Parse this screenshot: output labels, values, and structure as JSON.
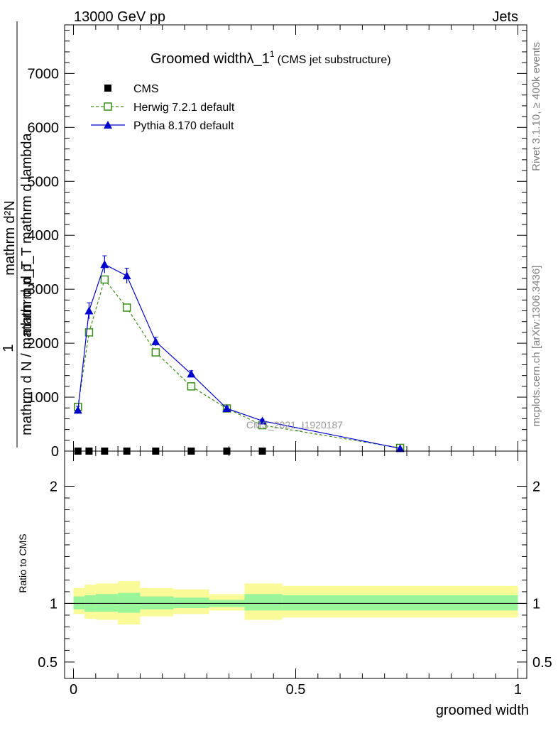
{
  "header": {
    "energy": "13000 GeV pp",
    "process": "Jets"
  },
  "side": {
    "rivet": "Rivet 3.1.10, ≥ 400k events",
    "source": "mcplots.cern.ch [arXiv:1306.3436]"
  },
  "watermark": "CMS_2021_I1920187",
  "main_plot": {
    "title": "Groomed widthλ_1",
    "title_sup": "1",
    "title_note": "(CMS jet substructure)",
    "ylabel_parts": {
      "top_numer": "mathrm d²N",
      "top_denom": "mathrm d p_T mathrm d lambda",
      "prefactor": "1",
      "bottom_denom": "mathrm d N / mathrm d p_T"
    }
  },
  "ratio_plot": {
    "ylabel": "Ratio to CMS",
    "xlabel": "groomed width"
  },
  "legend": {
    "entries": [
      {
        "label": "CMS",
        "marker": "square-filled",
        "color": "#000000"
      },
      {
        "label": "Herwig 7.2.1 default",
        "marker": "square-open",
        "color": "#3d8c19"
      },
      {
        "label": "Pythia 8.170 default",
        "marker": "triangle",
        "color": "#0000cc"
      }
    ]
  },
  "chart_data": [
    {
      "type": "line",
      "xlim": [
        -0.02,
        1.02
      ],
      "ylim": [
        0,
        7900
      ],
      "yticks": [
        0,
        1000,
        2000,
        3000,
        4000,
        5000,
        6000,
        7000
      ],
      "ytick_labels": [
        "0",
        "1000",
        "2000",
        "3000",
        "4000",
        "5000",
        "6000",
        "7000"
      ],
      "grid": false,
      "legend_position": "top-left",
      "series": [
        {
          "name": "CMS",
          "x": [
            0.01,
            0.035,
            0.07,
            0.12,
            0.185,
            0.265,
            0.345,
            0.425
          ],
          "y": [
            0,
            0,
            0,
            0,
            0,
            0,
            0,
            0
          ],
          "color": "#000000"
        },
        {
          "name": "Herwig 7.2.1 default",
          "x": [
            0.01,
            0.035,
            0.07,
            0.12,
            0.185,
            0.265,
            0.345,
            0.425,
            0.735
          ],
          "y": [
            820,
            2200,
            3180,
            2660,
            1830,
            1200,
            790,
            480,
            60
          ],
          "color": "#3d8c19"
        },
        {
          "name": "Pythia 8.170 default",
          "x": [
            0.01,
            0.035,
            0.07,
            0.12,
            0.185,
            0.265,
            0.345,
            0.425,
            0.735
          ],
          "y": [
            760,
            2600,
            3460,
            3250,
            2030,
            1430,
            790,
            560,
            50
          ],
          "yerr": [
            70,
            150,
            160,
            140,
            80,
            60,
            40,
            30,
            10
          ],
          "color": "#0000cc"
        }
      ]
    },
    {
      "type": "area",
      "xlim": [
        -0.02,
        1.02
      ],
      "ylim": [
        0.36,
        2.3
      ],
      "yticks": [
        0.5,
        1,
        2
      ],
      "ytick_labels": [
        "0.5",
        "1",
        "2"
      ],
      "xticks": [
        0,
        0.5,
        1
      ],
      "xtick_labels": [
        "0",
        "0.5",
        "1"
      ],
      "reference": 1,
      "bands": {
        "bin_edges": [
          0,
          0.025,
          0.05,
          0.1,
          0.15,
          0.225,
          0.305,
          0.385,
          0.47,
          1.0
        ],
        "inner_lo": [
          0.95,
          0.93,
          0.93,
          0.92,
          0.95,
          0.96,
          0.97,
          0.94,
          0.94
        ],
        "inner_hi": [
          1.06,
          1.07,
          1.08,
          1.09,
          1.06,
          1.05,
          1.03,
          1.08,
          1.07
        ],
        "outer_lo": [
          0.91,
          0.87,
          0.86,
          0.82,
          0.89,
          0.91,
          0.94,
          0.86,
          0.88
        ],
        "outer_hi": [
          1.13,
          1.16,
          1.17,
          1.19,
          1.13,
          1.12,
          1.08,
          1.17,
          1.15
        ],
        "inner_color": "#99f599",
        "outer_color": "#fafa99"
      }
    }
  ]
}
